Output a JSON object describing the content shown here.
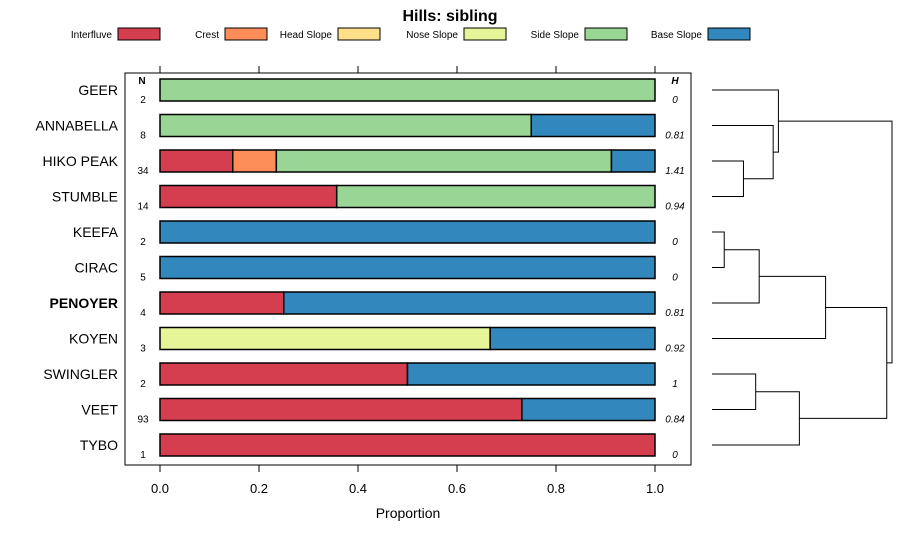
{
  "chart_data": {
    "type": "bar",
    "orientation": "horizontal",
    "stacked": true,
    "title": "Hills: sibling",
    "xlabel": "Proportion",
    "ylabel": "",
    "xlim": [
      0,
      1
    ],
    "x_ticks": [
      "0.0",
      "0.2",
      "0.4",
      "0.6",
      "0.8",
      "1.0"
    ],
    "legend_position": "top",
    "n_header": "N",
    "h_header": "H",
    "categories": [
      "GEER",
      "ANNABELLA",
      "HIKO PEAK",
      "STUMBLE",
      "KEEFA",
      "CIRAC",
      "PENOYER",
      "KOYEN",
      "SWINGLER",
      "VEET",
      "TYBO"
    ],
    "highlighted_category": "PENOYER",
    "n_values": [
      "2",
      "8",
      "34",
      "14",
      "2",
      "5",
      "4",
      "3",
      "2",
      "93",
      "1"
    ],
    "h_values": [
      "0",
      "0.81",
      "1.41",
      "0.94",
      "0",
      "0",
      "0.81",
      "0.92",
      "1",
      "0.84",
      "0"
    ],
    "series": [
      {
        "name": "Interfluve",
        "color": "#D53E4F",
        "values": [
          0,
          0,
          0.147,
          0.357,
          0,
          0,
          0.25,
          0,
          0.5,
          0.731,
          1
        ]
      },
      {
        "name": "Crest",
        "color": "#FC8D59",
        "values": [
          0,
          0,
          0.088,
          0,
          0,
          0,
          0,
          0,
          0,
          0,
          0
        ]
      },
      {
        "name": "Head Slope",
        "color": "#FEE08B",
        "values": [
          0,
          0,
          0,
          0,
          0,
          0,
          0,
          0,
          0,
          0,
          0
        ]
      },
      {
        "name": "Nose Slope",
        "color": "#E6F598",
        "values": [
          0,
          0,
          0,
          0,
          0,
          0,
          0,
          0.667,
          0,
          0,
          0
        ]
      },
      {
        "name": "Side Slope",
        "color": "#99D594",
        "values": [
          1,
          0.75,
          0.677,
          0.643,
          0,
          0,
          0,
          0,
          0,
          0,
          0
        ]
      },
      {
        "name": "Base Slope",
        "color": "#3288BD",
        "values": [
          0,
          0.25,
          0.088,
          0,
          1,
          1,
          0.75,
          0.333,
          0.5,
          0.269,
          0
        ]
      }
    ],
    "dendrogram": {
      "merges": [
        [
          "STUMBLE",
          "HIKO PEAK",
          0.18
        ],
        [
          "KEEFA",
          "CIRAC",
          0.07
        ],
        [
          "SWINGLER",
          "VEET",
          0.25
        ],
        [
          "ANNABELLA",
          "STUMBLE+HIKO PEAK",
          0.35
        ],
        [
          "GEER",
          "ANNABELLA+STUMBLE+HIKO PEAK",
          0.38
        ],
        [
          "KEEFA+CIRAC",
          "PENOYER",
          0.27
        ],
        [
          "SWINGLER+VEET",
          "TYBO",
          0.5
        ],
        [
          "KEEFA+CIRAC+PENOYER",
          "KOYEN",
          0.65
        ],
        [
          "KEEFA+CIRAC+PENOYER+KOYEN",
          "SWINGLER+VEET+TYBO",
          1.0
        ],
        [
          "GEER+ANNABELLA+STUMBLE+HIKO PEAK",
          "REST",
          1.03
        ]
      ]
    }
  }
}
